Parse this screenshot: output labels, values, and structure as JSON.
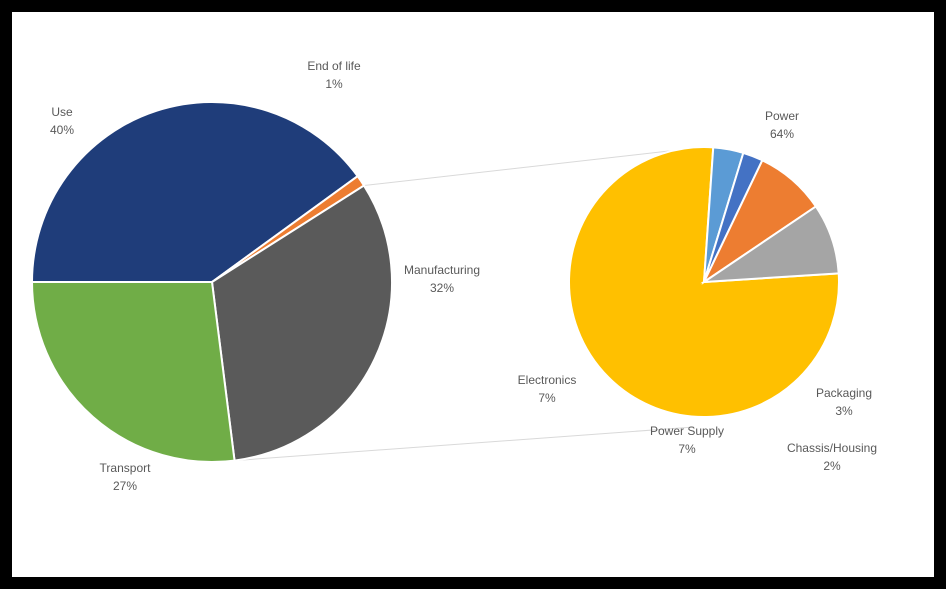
{
  "chart_data": {
    "type": "pie",
    "title": "",
    "main_pie": {
      "categories": [
        "Use",
        "End of life",
        "Manufacturing",
        "Transport"
      ],
      "values": [
        40,
        1,
        32,
        27
      ],
      "labels": [
        "40%",
        "1%",
        "32%",
        "27%"
      ],
      "colors": [
        "#1f3d7a",
        "#ed7d31",
        "#5a5a5a",
        "#70ad47"
      ]
    },
    "breakdown_pie": {
      "of_category": "Manufacturing",
      "categories": [
        "Power",
        "Packaging",
        "Chassis/Housing",
        "Power Supply",
        "Electronics"
      ],
      "values": [
        64,
        3,
        2,
        7,
        7
      ],
      "labels": [
        "64%",
        "3%",
        "2%",
        "7%",
        "7%"
      ],
      "colors": [
        "#ffc000",
        "#5b9bd5",
        "#4472c4",
        "#ed7d31",
        "#a5a5a5"
      ]
    }
  }
}
